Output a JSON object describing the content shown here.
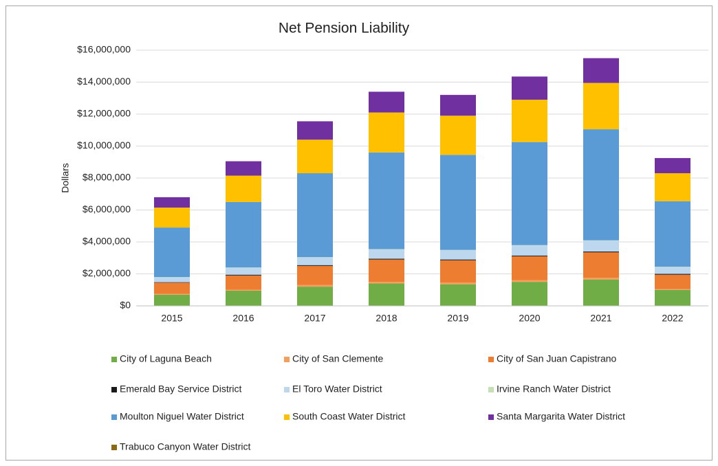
{
  "chart_data": {
    "type": "stacked_bar",
    "title": "Net Pension Liability",
    "y_label": "Dollars",
    "categories": [
      "2015",
      "2016",
      "2017",
      "2018",
      "2019",
      "2020",
      "2021",
      "2022"
    ],
    "series": [
      {
        "name": "City of Laguna Beach",
        "color": "#70ad47",
        "values": [
          700000,
          950000,
          1200000,
          1400000,
          1350000,
          1500000,
          1650000,
          1000000
        ]
      },
      {
        "name": "City of San Clemente",
        "color": "#f4a05c",
        "values": [
          50000,
          50000,
          100000,
          100000,
          100000,
          100000,
          100000,
          50000
        ]
      },
      {
        "name": "City of San Juan Capistrano",
        "color": "#ed7d31",
        "values": [
          700000,
          900000,
          1200000,
          1400000,
          1400000,
          1500000,
          1600000,
          900000
        ]
      },
      {
        "name": "Emerald Bay Service District",
        "color": "#1a1a1a",
        "values": [
          30000,
          50000,
          50000,
          50000,
          50000,
          50000,
          50000,
          50000
        ]
      },
      {
        "name": "El Toro Water District",
        "color": "#bdd7ee",
        "values": [
          300000,
          430000,
          480000,
          580000,
          580000,
          630000,
          680000,
          430000
        ]
      },
      {
        "name": "Irvine Ranch Water District",
        "color": "#c5e0b4",
        "values": [
          20000,
          20000,
          20000,
          20000,
          20000,
          20000,
          20000,
          20000
        ]
      },
      {
        "name": "Moulton Niguel Water District",
        "color": "#5b9bd5",
        "values": [
          3100000,
          4100000,
          5250000,
          6050000,
          5950000,
          6450000,
          6950000,
          4100000
        ]
      },
      {
        "name": "South Coast Water District",
        "color": "#ffc000",
        "values": [
          1250000,
          1650000,
          2100000,
          2500000,
          2450000,
          2650000,
          2900000,
          1750000
        ]
      },
      {
        "name": "Santa Margarita Water District",
        "color": "#7030a0",
        "values": [
          650000,
          900000,
          1150000,
          1300000,
          1300000,
          1450000,
          1550000,
          950000
        ]
      },
      {
        "name": "Trabuco Canyon Water District",
        "color": "#8b6914",
        "values": [
          0,
          0,
          0,
          0,
          0,
          0,
          0,
          0
        ]
      }
    ],
    "ylim": [
      0,
      16000000
    ],
    "yticks": [
      {
        "value": 0,
        "label": "$0"
      },
      {
        "value": 2000000,
        "label": "$2,000,000"
      },
      {
        "value": 4000000,
        "label": "$4,000,000"
      },
      {
        "value": 6000000,
        "label": "$6,000,000"
      },
      {
        "value": 8000000,
        "label": "$8,000,000"
      },
      {
        "value": 10000000,
        "label": "$10,000,000"
      },
      {
        "value": 12000000,
        "label": "$12,000,000"
      },
      {
        "value": 14000000,
        "label": "$14,000,000"
      },
      {
        "value": 16000000,
        "label": "$16,000,000"
      }
    ],
    "grid": true,
    "legend": "bottom"
  }
}
